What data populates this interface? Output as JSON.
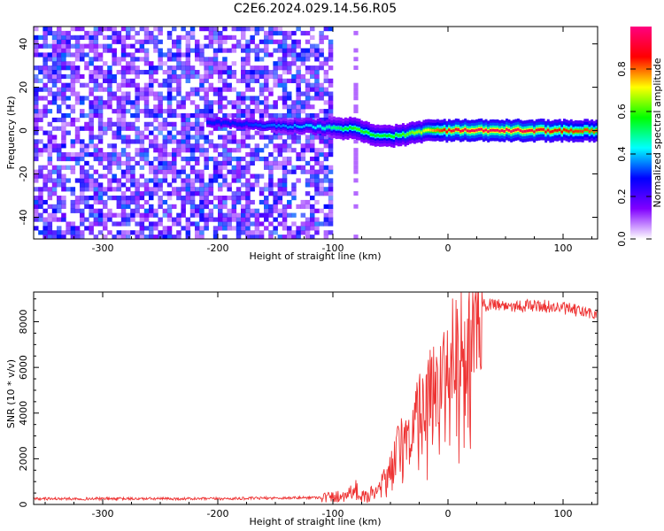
{
  "title": "C2E6.2024.029.14.56.R05",
  "chart_data": [
    {
      "type": "heatmap",
      "xlabel": "Height of straight line (km)",
      "ylabel": "Frequency (Hz)",
      "xlim": [
        -360,
        130
      ],
      "ylim": [
        -50,
        48
      ],
      "xticks": [
        -300,
        -200,
        -100,
        0,
        100
      ],
      "yticks": [
        -40,
        -20,
        0,
        20,
        40
      ],
      "colorbar": {
        "label": "Normalized spectral amplitude",
        "range": [
          0,
          1
        ],
        "ticks": [
          "0.0",
          "0.2",
          "0.4",
          "0.6",
          "0.8"
        ],
        "tick_values": [
          0.0,
          0.2,
          0.4,
          0.6,
          0.8
        ],
        "colormap": [
          "#ffffff",
          "#8000ff",
          "#0000ff",
          "#00ffff",
          "#00ff00",
          "#ffff00",
          "#ff0000",
          "#ff0080"
        ]
      },
      "noise_region": {
        "x_range": [
          -360,
          -100
        ],
        "freq_range": [
          -50,
          48
        ],
        "level": 0.3
      },
      "signal_band": {
        "x": [
          -210,
          -180,
          -150,
          -120,
          -100,
          -80,
          -60,
          -40,
          -20,
          0,
          20,
          40,
          60,
          80,
          100,
          130
        ],
        "center_freq": [
          4,
          3,
          2,
          2,
          1,
          1,
          -3,
          -2,
          0,
          0,
          0,
          0,
          0,
          0,
          0,
          0
        ],
        "amplitude": [
          0.3,
          0.3,
          0.35,
          0.4,
          0.5,
          0.6,
          0.55,
          0.6,
          0.7,
          0.9,
          0.95,
          0.95,
          0.95,
          0.9,
          0.85,
          0.8
        ]
      }
    },
    {
      "type": "line",
      "xlabel": "Height of straight line (km)",
      "ylabel": "SNR (10 * v/v)",
      "xlim": [
        -360,
        130
      ],
      "ylim": [
        0,
        9300
      ],
      "xticks": [
        -300,
        -200,
        -100,
        0,
        100
      ],
      "yticks": [
        0,
        2000,
        4000,
        6000,
        8000
      ],
      "series": [
        {
          "color": "#ee3333",
          "x": [
            -360,
            -300,
            -250,
            -200,
            -150,
            -120,
            -100,
            -90,
            -80,
            -75,
            -70,
            -60,
            -50,
            -45,
            -40,
            -35,
            -30,
            -25,
            -20,
            -15,
            -10,
            -5,
            0,
            5,
            10,
            15,
            20,
            25,
            30,
            40,
            50,
            60,
            70,
            80,
            90,
            100,
            110,
            120,
            130
          ],
          "y": [
            250,
            250,
            250,
            250,
            280,
            300,
            320,
            400,
            700,
            400,
            300,
            800,
            1500,
            2500,
            3000,
            3200,
            3500,
            4200,
            4800,
            5000,
            5500,
            6000,
            6500,
            7200,
            7500,
            8000,
            8300,
            8500,
            8700,
            8800,
            8700,
            8700,
            8700,
            8700,
            8650,
            8600,
            8500,
            8400,
            8300
          ]
        }
      ]
    }
  ]
}
